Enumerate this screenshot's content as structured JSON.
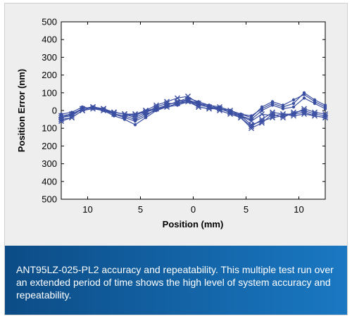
{
  "caption": "ANT95LZ-025-PL2 accuracy and repeatability. This multiple test run over an extended period of time shows the high level of system accuracy and repeatability.",
  "chart_data": {
    "type": "line",
    "xlabel": "Position (mm)",
    "ylabel": "Position Error (nm)",
    "xlim": [
      -12.5,
      12.5
    ],
    "ylim": [
      -500,
      500
    ],
    "x_ticks": [
      -10,
      -5,
      0,
      5,
      10
    ],
    "x_tick_labels": [
      "10",
      "5",
      "0",
      "5",
      "10"
    ],
    "y_ticks": [
      500,
      400,
      300,
      200,
      100,
      0,
      -100,
      -200,
      -300,
      -400,
      -500
    ],
    "y_tick_labels": [
      "500",
      "400",
      "300",
      "200",
      "100",
      "0",
      "100",
      "200",
      "300",
      "400",
      "500"
    ],
    "grid": false,
    "series_color": "#3b4fa2",
    "x": [
      -12.5,
      -11.5,
      -10.5,
      -9.5,
      -8.5,
      -7.5,
      -6.5,
      -5.5,
      -4.5,
      -3.5,
      -2.5,
      -1.5,
      -0.5,
      0.5,
      1.5,
      2.5,
      3.5,
      4.5,
      5.5,
      6.5,
      7.5,
      8.5,
      9.5,
      10.5,
      11.5,
      12.5
    ],
    "series": [
      {
        "marker": "x",
        "values": [
          -40,
          -30,
          10,
          20,
          10,
          -10,
          -20,
          -30,
          0,
          30,
          50,
          70,
          80,
          40,
          20,
          10,
          -10,
          -30,
          -60,
          -20,
          -30,
          -20,
          -20,
          10,
          -10,
          -20
        ]
      },
      {
        "marker": "x",
        "values": [
          -60,
          -40,
          0,
          20,
          10,
          -10,
          -20,
          -20,
          -10,
          10,
          30,
          50,
          60,
          30,
          20,
          0,
          -20,
          -40,
          -100,
          -70,
          -20,
          -40,
          -10,
          0,
          -20,
          -30
        ]
      },
      {
        "marker": "x",
        "values": [
          -30,
          -20,
          10,
          20,
          0,
          -10,
          -20,
          -40,
          -10,
          20,
          40,
          40,
          60,
          20,
          10,
          20,
          0,
          -30,
          -80,
          -60,
          -40,
          -30,
          -20,
          -10,
          -30,
          -40
        ]
      },
      {
        "marker": "x",
        "values": [
          -50,
          -40,
          0,
          10,
          10,
          -20,
          -30,
          -20,
          0,
          10,
          20,
          40,
          50,
          20,
          10,
          10,
          -10,
          -40,
          -90,
          -50,
          -10,
          -20,
          -30,
          -20,
          -30,
          -40
        ]
      },
      {
        "marker": "dot",
        "values": [
          -20,
          -10,
          20,
          10,
          0,
          -20,
          -40,
          -60,
          -30,
          10,
          20,
          30,
          50,
          40,
          30,
          20,
          0,
          -20,
          -40,
          20,
          50,
          30,
          60,
          90,
          50,
          20
        ]
      },
      {
        "marker": "dot",
        "values": [
          -30,
          -20,
          10,
          20,
          0,
          -30,
          -50,
          -80,
          -40,
          0,
          20,
          40,
          60,
          40,
          20,
          10,
          0,
          -20,
          -30,
          10,
          40,
          20,
          40,
          100,
          60,
          30
        ]
      },
      {
        "marker": "dot",
        "values": [
          -40,
          -20,
          10,
          20,
          10,
          -20,
          -30,
          -50,
          -20,
          0,
          30,
          50,
          70,
          50,
          30,
          10,
          -10,
          -30,
          -50,
          0,
          30,
          10,
          20,
          70,
          40,
          10
        ]
      }
    ]
  }
}
